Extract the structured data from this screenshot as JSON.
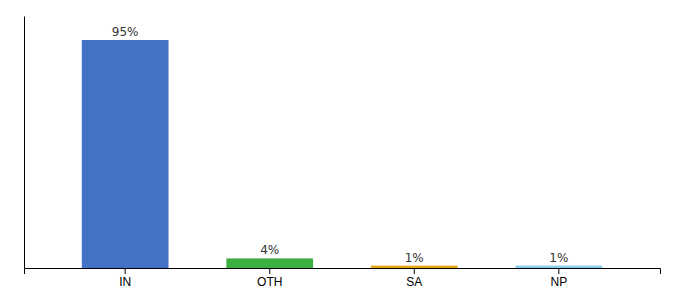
{
  "chart_data": {
    "type": "bar",
    "categories": [
      "IN",
      "OTH",
      "SA",
      "NP"
    ],
    "values": [
      95,
      4,
      1,
      1
    ],
    "value_labels": [
      "95%",
      "4%",
      "1%",
      "1%"
    ],
    "colors": [
      "#4472c4",
      "#3cb043",
      "#e6a817",
      "#87ceeb"
    ],
    "ylim": [
      0,
      105
    ],
    "data_labels": true,
    "tick_labels": "x",
    "grid": false
  }
}
